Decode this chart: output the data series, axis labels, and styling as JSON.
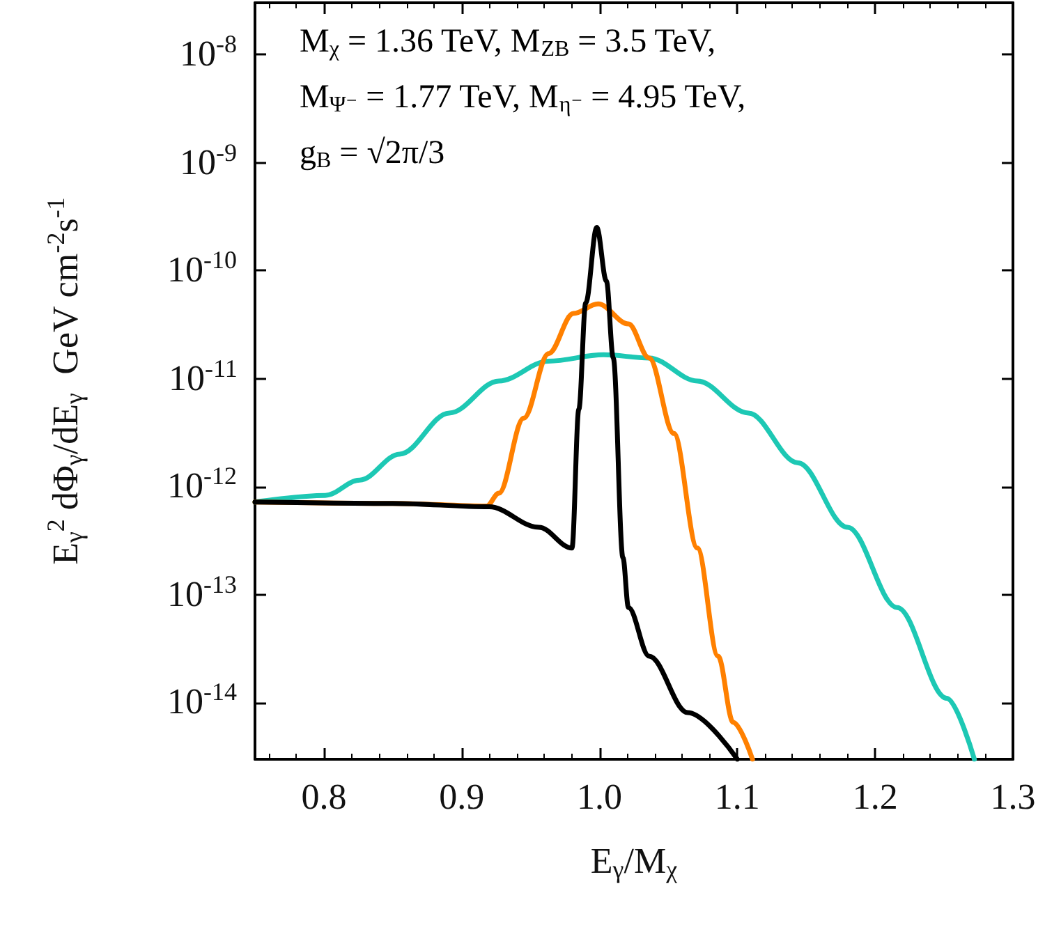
{
  "chart_data": {
    "type": "line",
    "xlabel": "E$_{γ}$/M$_{χ}$",
    "ylabel": "E$_{γ}$$^{2}$ dΦ$_{γ}$/dE$_{γ}$  GeV cm$^{-2}$s$^{-1}$",
    "annotations": [
      "M$_{χ}$ = 1.36 TeV, M$_{ZB}$ = 3.5 TeV,",
      "M$_{Ψ⁻}$ = 1.77 TeV, M$_{η⁻}$ = 4.95 TeV,",
      "g$_{B}$ = √2π/3"
    ],
    "series": [
      {
        "color": "#1dc8b4",
        "x": [
          0.75,
          0.801,
          0.826,
          0.855,
          0.891,
          0.927,
          0.963,
          1.003,
          1.036,
          1.071,
          1.108,
          1.144,
          1.18,
          1.216,
          1.252,
          1.272
        ],
        "values": [
          7.2e-13,
          8.3e-13,
          1.15e-12,
          2e-12,
          4.8e-12,
          9.5e-12,
          1.45e-11,
          1.66e-11,
          1.55e-11,
          9.5e-12,
          4.8e-12,
          1.66e-12,
          4.2e-13,
          7.6e-14,
          1.1e-14,
          3e-15
        ]
      },
      {
        "color": "#ff8000",
        "x": [
          0.75,
          0.85,
          0.918,
          0.927,
          0.945,
          0.963,
          0.981,
          0.999,
          1.021,
          1.036,
          1.054,
          1.071,
          1.086,
          1.097,
          1.111
        ],
        "values": [
          7.2e-13,
          7e-13,
          6.6e-13,
          8.7e-13,
          4.3e-12,
          1.7e-11,
          4e-11,
          4.9e-11,
          3.2e-11,
          1.55e-11,
          3.1e-12,
          2.7e-13,
          2.7e-14,
          6.6e-15,
          3e-15
        ]
      },
      {
        "color": "#000000",
        "x": [
          0.75,
          0.85,
          0.92,
          0.956,
          0.98,
          0.985,
          0.99,
          0.998,
          1.005,
          1.01,
          1.017,
          1.021,
          1.036,
          1.064,
          1.1
        ],
        "values": [
          7.2e-13,
          7e-13,
          6.5e-13,
          4.2e-13,
          2.7e-13,
          5.2e-12,
          5e-11,
          2.5e-10,
          8e-11,
          1.55e-11,
          2.2e-13,
          7.6e-14,
          2.7e-14,
          8.1e-15,
          3e-15
        ]
      }
    ],
    "xlim": [
      0.75,
      1.3
    ],
    "xticks": [
      {
        "value": 0.8,
        "label": "0.8"
      },
      {
        "value": 0.9,
        "label": "0.9"
      },
      {
        "value": 1.0,
        "label": "1.0"
      },
      {
        "value": 1.1,
        "label": "1.1"
      },
      {
        "value": 1.2,
        "label": "1.2"
      },
      {
        "value": 1.3,
        "label": "1.3"
      }
    ],
    "ylim": [
      3e-15,
      3e-08
    ],
    "log": "y",
    "yticks": [
      {
        "value": 1e-14,
        "label": "10$^{-14}$"
      },
      {
        "value": 1e-13,
        "label": "10$^{-13}$"
      },
      {
        "value": 1e-12,
        "label": "10$^{-12}$"
      },
      {
        "value": 1e-11,
        "label": "10$^{-11}$"
      },
      {
        "value": 1e-10,
        "label": "10$^{-10}$"
      },
      {
        "value": 1e-09,
        "label": "10$^{-9}$"
      },
      {
        "value": 1e-08,
        "label": "10$^{-8}$"
      }
    ],
    "grid": false,
    "line_style": "solid"
  }
}
